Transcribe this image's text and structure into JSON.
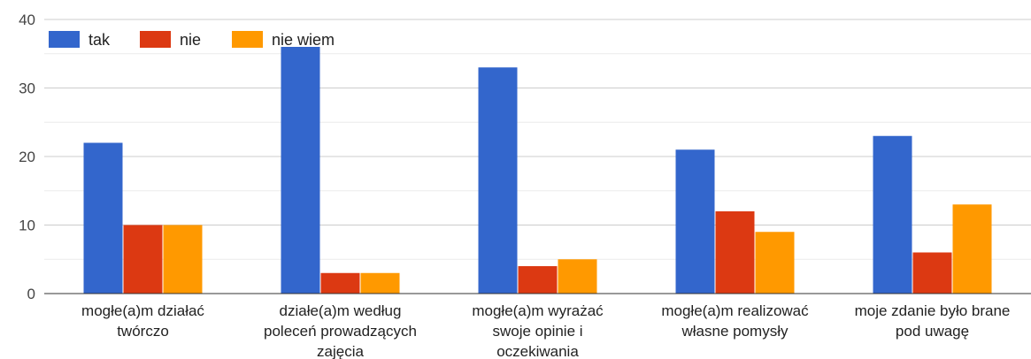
{
  "chart_data": {
    "type": "bar",
    "categories": [
      [
        "mogłe(a)m działać",
        "twórczo"
      ],
      [
        "działe(a)m według",
        "poleceń prowadzących",
        "zajęcia"
      ],
      [
        "mogłe(a)m wyrażać",
        "swoje opinie i",
        "oczekiwania"
      ],
      [
        "mogłe(a)m realizować",
        "własne pomysły"
      ],
      [
        "moje zdanie było brane",
        "pod uwagę"
      ]
    ],
    "series": [
      {
        "name": "tak",
        "color": "#3366cc",
        "values": [
          22,
          36,
          33,
          21,
          23
        ]
      },
      {
        "name": "nie",
        "color": "#dc3912",
        "values": [
          10,
          3,
          4,
          12,
          6
        ]
      },
      {
        "name": "nie wiem",
        "color": "#ff9900",
        "values": [
          10,
          3,
          5,
          9,
          13
        ]
      }
    ],
    "y_ticks": [
      "0",
      "10",
      "20",
      "30",
      "40"
    ],
    "ylim": [
      0,
      40
    ],
    "grid": true,
    "minor_grid_step": 5,
    "legend_position": "top-left"
  }
}
